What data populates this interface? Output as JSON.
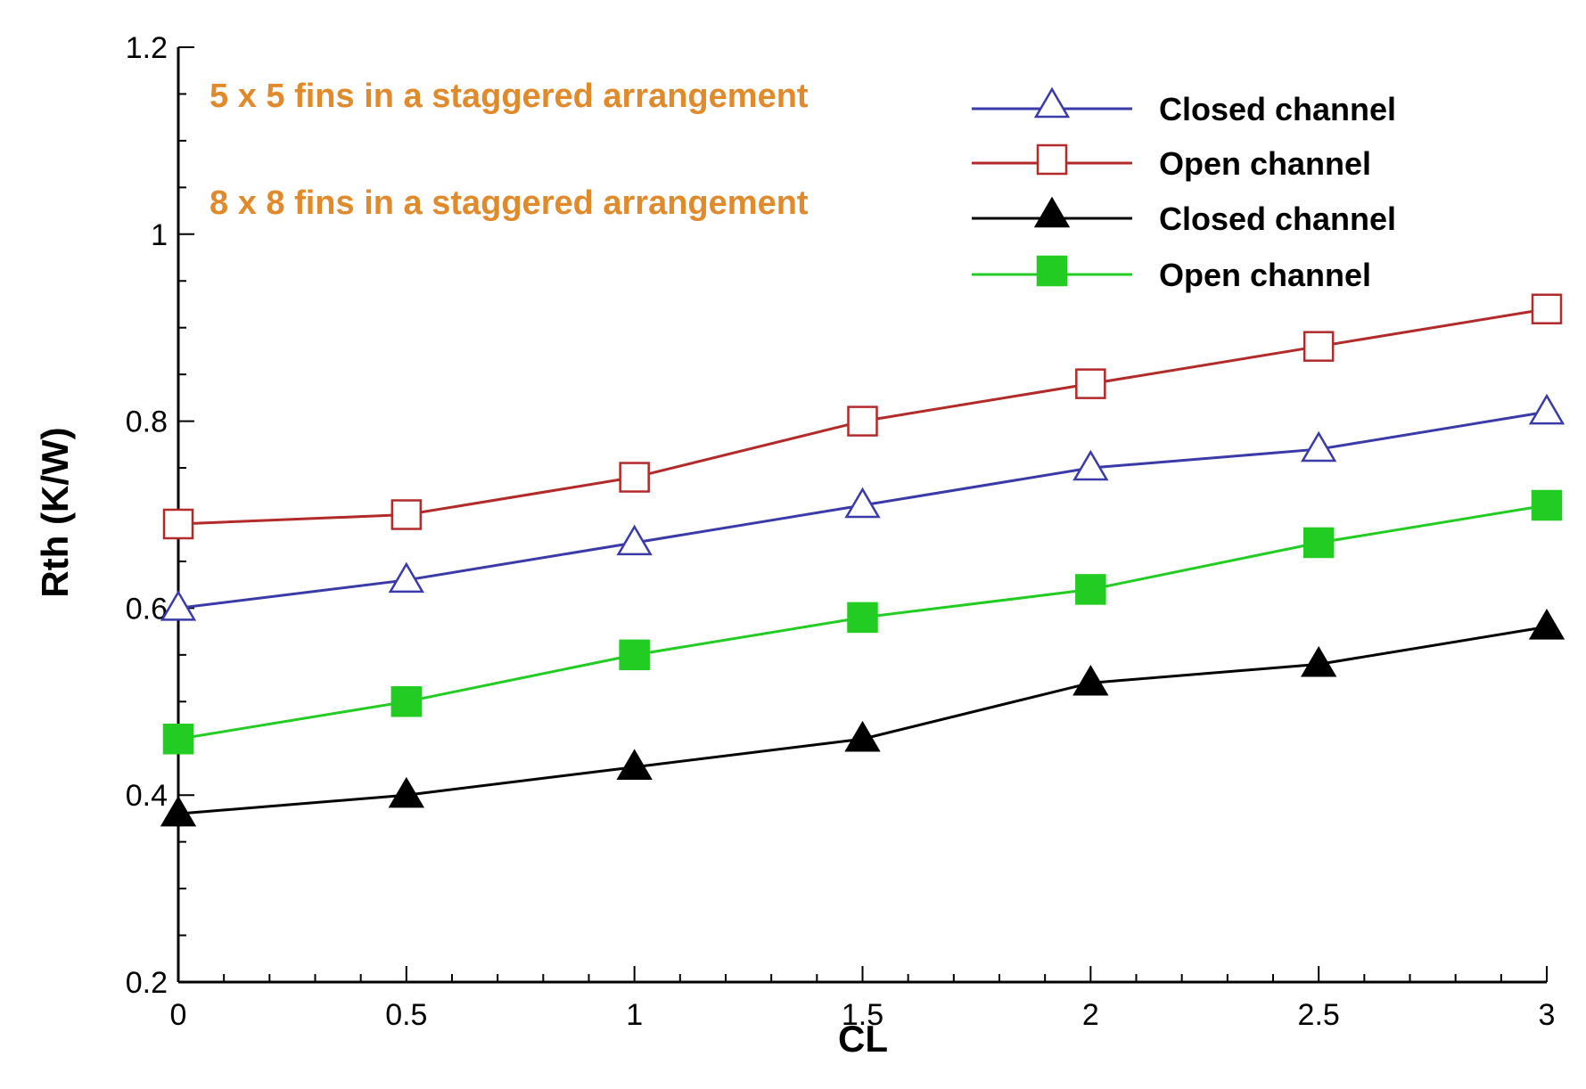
{
  "chart_data": {
    "type": "line",
    "xlabel": "CL",
    "ylabel": "Rth (K/W)",
    "xlim": [
      0,
      3
    ],
    "ylim": [
      0.2,
      1.2
    ],
    "x_ticks": [
      0,
      0.5,
      1,
      1.5,
      2,
      2.5,
      3
    ],
    "x_tick_labels": [
      "0",
      "0.5",
      "1",
      "1.5",
      "2",
      "2.5",
      "3"
    ],
    "y_ticks": [
      0.2,
      0.4,
      0.6,
      0.8,
      1.0,
      1.2
    ],
    "y_tick_labels": [
      "0.2",
      "0.4",
      "0.6",
      "0.8",
      "1",
      "1.2"
    ],
    "grid": false,
    "legend_position": "top-right",
    "groups": [
      {
        "label": "5 x 5 fins in a staggered arrangement",
        "color": "#e08a2c"
      },
      {
        "label": "8 x 8 fins in a staggered arrangement",
        "color": "#e08a2c"
      }
    ],
    "x": [
      0,
      0.5,
      1,
      1.5,
      2,
      2.5,
      3
    ],
    "series": [
      {
        "name": "Closed channel",
        "group": 0,
        "color": "#3a3aa8",
        "marker": "triangle-open",
        "values": [
          0.6,
          0.63,
          0.67,
          0.71,
          0.75,
          0.77,
          0.81
        ]
      },
      {
        "name": "Open channel",
        "group": 0,
        "color": "#b22a2a",
        "marker": "square-open",
        "values": [
          0.69,
          0.7,
          0.74,
          0.8,
          0.84,
          0.88,
          0.92
        ]
      },
      {
        "name": "Closed channel",
        "group": 1,
        "color": "#000000",
        "marker": "triangle-filled",
        "values": [
          0.38,
          0.4,
          0.43,
          0.46,
          0.52,
          0.54,
          0.58
        ]
      },
      {
        "name": "Open channel",
        "group": 1,
        "color": "#22cc22",
        "marker": "square-filled",
        "values": [
          0.46,
          0.5,
          0.55,
          0.59,
          0.62,
          0.67,
          0.71
        ]
      }
    ]
  }
}
